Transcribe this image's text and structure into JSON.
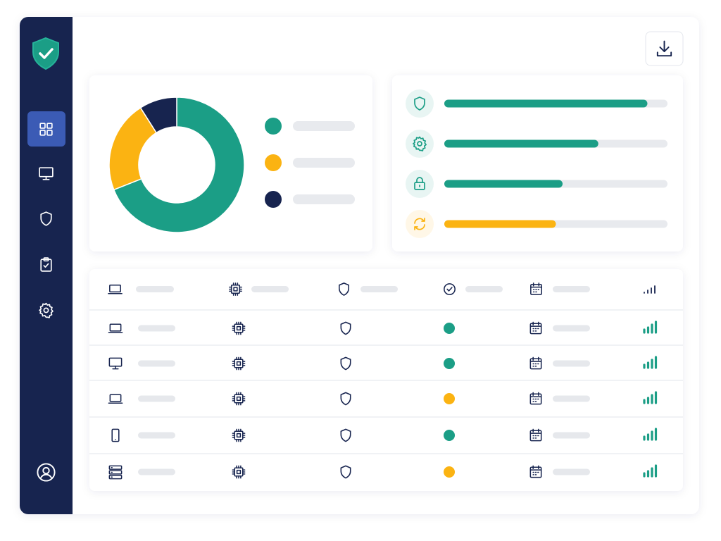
{
  "chart_data": [
    {
      "type": "pie",
      "values": [
        69,
        22,
        9
      ],
      "colors": [
        "#1b9e86",
        "#fbb312",
        "#17244f"
      ]
    },
    {
      "type": "bar",
      "values": [
        91,
        69,
        53,
        50
      ],
      "colors": [
        "#1b9e86",
        "#1b9e86",
        "#1b9e86",
        "#fbb312"
      ],
      "xlim": [
        0,
        100
      ]
    }
  ],
  "table": {
    "rows": [
      {
        "status_color": "#1b9e86"
      },
      {
        "status_color": "#1b9e86"
      },
      {
        "status_color": "#fbb312"
      },
      {
        "status_color": "#1b9e86"
      },
      {
        "status_color": "#fbb312"
      }
    ]
  }
}
